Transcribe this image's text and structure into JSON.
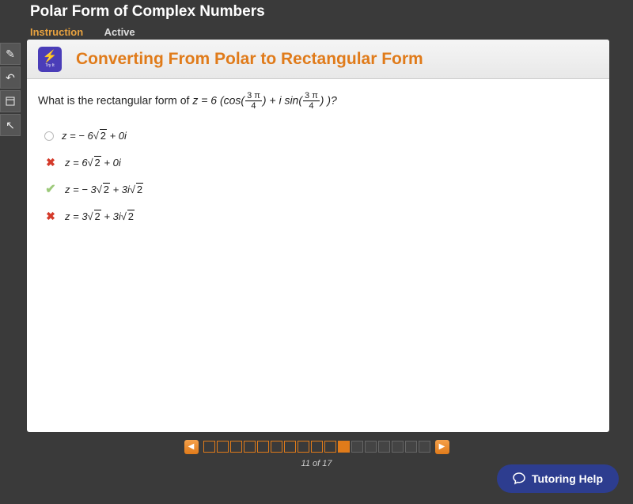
{
  "header": {
    "title": "Polar Form of Complex Numbers"
  },
  "tabs": {
    "instruction": "Instruction",
    "active": "Active"
  },
  "sidebar_icons": [
    "edit",
    "undo",
    "calc",
    "tools"
  ],
  "banner": {
    "tryit_label": "Try It",
    "title": "Converting From Polar to Rectangular Form"
  },
  "question": {
    "lead": "What is the rectangular form of ",
    "expr_prefix": "z = 6 (cos(",
    "frac_num": "3 π",
    "frac_den": "4",
    "expr_mid": ") + i sin(",
    "expr_suffix": ") )?"
  },
  "choices": [
    {
      "state": "blank",
      "text_pre": "z = − 6",
      "sqrt_v": "2",
      "text_post": " + 0i"
    },
    {
      "state": "wrong",
      "text_pre": "z = 6",
      "sqrt_v": "2",
      "text_post": " + 0i"
    },
    {
      "state": "correct",
      "text_pre": "z = − 3",
      "sqrt_v": "2",
      "text_post": " + 3i",
      "sqrt2_v": "2"
    },
    {
      "state": "wrong",
      "text_pre": "z = 3",
      "sqrt_v": "2",
      "text_post": " + 3i",
      "sqrt2_v": "2"
    }
  ],
  "pager": {
    "current": 11,
    "total": 17,
    "label": "11 of 17",
    "completed_count": 10
  },
  "help": {
    "label": "Tutoring Help"
  },
  "colors": {
    "accent": "#e07b1a",
    "wrong": "#d43a2a",
    "correct": "#9cc97a",
    "help_bg": "#2d3d8f",
    "tryit_bg": "#4a3db8"
  }
}
